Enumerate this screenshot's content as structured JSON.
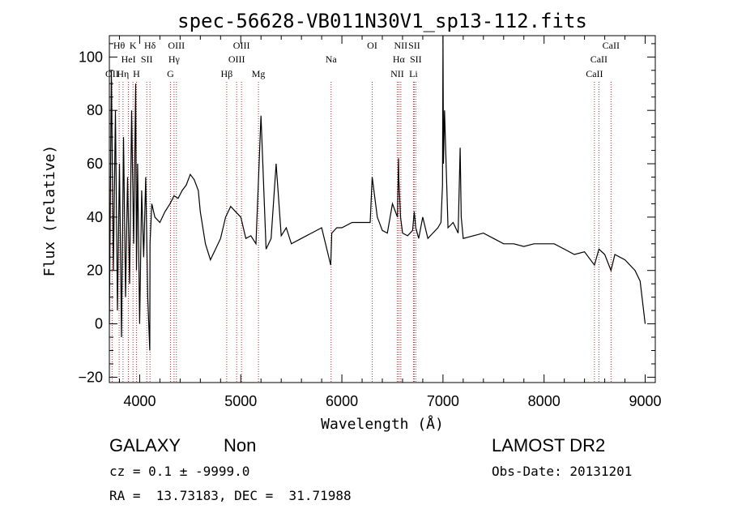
{
  "chart_data": {
    "type": "line",
    "title": "spec-56628-VB011N30V1_sp13-112.fits",
    "xlabel": "Wavelength (Å)",
    "ylabel": "Flux (relative)",
    "xlim": [
      3700,
      9100
    ],
    "ylim": [
      -22,
      108
    ],
    "x_ticks": [
      4000,
      5000,
      6000,
      7000,
      8000,
      9000
    ],
    "y_ticks": [
      -20,
      0,
      20,
      40,
      60,
      80,
      100
    ],
    "grid": false,
    "series": [
      {
        "x": [
          3700,
          3720,
          3740,
          3760,
          3780,
          3800,
          3820,
          3840,
          3860,
          3880,
          3900,
          3920,
          3940,
          3960,
          3968,
          3980,
          4000,
          4020,
          4040,
          4060,
          4080,
          4100,
          4102,
          4120,
          4150,
          4200,
          4250,
          4300,
          4340,
          4380,
          4420,
          4460,
          4500,
          4540,
          4580,
          4600,
          4650,
          4700,
          4750,
          4800,
          4850,
          4900,
          4950,
          5000,
          5050,
          5100,
          5150,
          5200,
          5250,
          5300,
          5350,
          5400,
          5450,
          5500,
          5600,
          5700,
          5800,
          5890,
          5900,
          5950,
          6000,
          6100,
          6200,
          6280,
          6300,
          6350,
          6400,
          6450,
          6500,
          6550,
          6560,
          6563,
          6580,
          6600,
          6650,
          6700,
          6716,
          6731,
          6760,
          6800,
          6850,
          6900,
          6950,
          6980,
          6995,
          7000,
          7005,
          7015,
          7050,
          7100,
          7150,
          7170,
          7180,
          7200,
          7300,
          7400,
          7500,
          7600,
          7700,
          7800,
          7900,
          8000,
          8100,
          8200,
          8300,
          8400,
          8498,
          8542,
          8600,
          8662,
          8700,
          8800,
          8900,
          8950,
          9000
        ],
        "y": [
          0,
          95,
          20,
          80,
          5,
          60,
          -5,
          70,
          10,
          55,
          15,
          80,
          30,
          90,
          20,
          60,
          0,
          50,
          25,
          55,
          10,
          -10,
          30,
          45,
          40,
          38,
          42,
          45,
          48,
          47,
          50,
          52,
          56,
          54,
          50,
          42,
          30,
          24,
          28,
          32,
          40,
          44,
          42,
          40,
          32,
          33,
          30,
          78,
          28,
          32,
          60,
          33,
          36,
          30,
          32,
          34,
          36,
          22,
          34,
          36,
          36,
          38,
          38,
          38,
          55,
          40,
          35,
          34,
          45,
          40,
          62,
          55,
          40,
          34,
          33,
          35,
          42,
          36,
          32,
          40,
          32,
          34,
          36,
          38,
          52,
          108,
          60,
          80,
          36,
          38,
          34,
          66,
          40,
          32,
          33,
          34,
          32,
          30,
          30,
          29,
          30,
          30,
          30,
          28,
          26,
          27,
          22,
          28,
          26,
          20,
          26,
          24,
          20,
          16,
          0
        ]
      }
    ],
    "line_markers": [
      {
        "label": "OII",
        "x": 3727,
        "row": 3
      },
      {
        "label": "Hθ",
        "x": 3797,
        "row": 1
      },
      {
        "label": "HeI",
        "x": 3889,
        "row": 2
      },
      {
        "label": "Hη",
        "x": 3835,
        "row": 3
      },
      {
        "label": "K",
        "x": 3934,
        "row": 1
      },
      {
        "label": "SII",
        "x": 4070,
        "row": 2
      },
      {
        "label": "H",
        "x": 3968,
        "row": 3
      },
      {
        "label": "Hδ",
        "x": 4102,
        "row": 1
      },
      {
        "label": "OIII",
        "x": 4363,
        "row": 1
      },
      {
        "label": "Hγ",
        "x": 4340,
        "row": 2
      },
      {
        "label": "G",
        "x": 4305,
        "row": 3
      },
      {
        "label": "Hβ",
        "x": 4861,
        "row": 3
      },
      {
        "label": "OIII",
        "x": 5007,
        "row": 1
      },
      {
        "label": "OIII",
        "x": 4959,
        "row": 2
      },
      {
        "label": "Mg",
        "x": 5175,
        "row": 3
      },
      {
        "label": "Na",
        "x": 5893,
        "row": 2
      },
      {
        "label": "OI",
        "x": 6300,
        "row": 1
      },
      {
        "label": "NII",
        "x": 6583,
        "row": 1
      },
      {
        "label": "Hα",
        "x": 6563,
        "row": 2
      },
      {
        "label": "NII",
        "x": 6548,
        "row": 3
      },
      {
        "label": "SII",
        "x": 6716,
        "row": 1
      },
      {
        "label": "SII",
        "x": 6731,
        "row": 2
      },
      {
        "label": "Li",
        "x": 6708,
        "row": 3
      },
      {
        "label": "CaII",
        "x": 8662,
        "row": 1
      },
      {
        "label": "CaII",
        "x": 8542,
        "row": 2
      },
      {
        "label": "CaII",
        "x": 8498,
        "row": 3
      }
    ]
  },
  "info": {
    "object_class": "GALAXY",
    "subclass": "Non",
    "survey": "LAMOST DR2",
    "cz_line": "cz = 0.1 ± -9999.0",
    "obs_date_line": "Obs-Date: 20131201",
    "radec_line": "RA =  13.73183, DEC =  31.71988"
  }
}
